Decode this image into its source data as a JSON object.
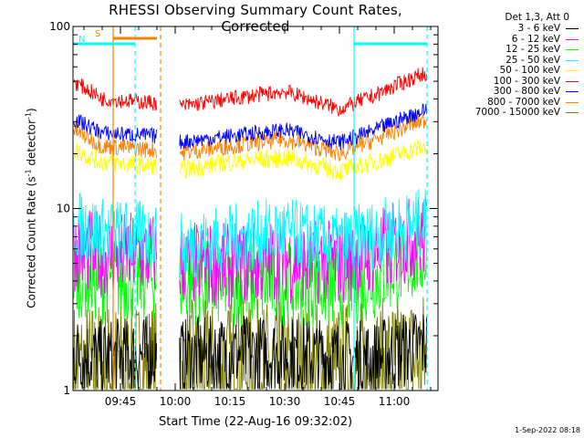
{
  "chart_data": {
    "type": "line",
    "title": "RHESSI Observing Summary Count Rates, Corrected",
    "xlabel": "Start Time (22-Aug-16 09:32:02)",
    "ylabel_main": "Corrected Count Rate (s",
    "ylabel_sup1": "-1",
    "ylabel_mid": " detector",
    "ylabel_sup2": "-1",
    "ylabel_end": ")",
    "yscale": "log",
    "ylim": [
      1,
      100
    ],
    "xlim": [
      "09:32",
      "11:12"
    ],
    "x_ticks": [
      "09:45",
      "10:00",
      "10:15",
      "10:30",
      "10:45",
      "11:00"
    ],
    "y_ticks": [
      "1",
      "10",
      "100"
    ],
    "gap": [
      "09:55",
      "10:00"
    ],
    "legend_header": "Det 1,3, Att 0",
    "timestamp": "1-Sep-2022 08:18",
    "flags": [
      {
        "label": "S",
        "color": "#ff8000",
        "start": "09:43",
        "end": "09:55"
      },
      {
        "label": "N",
        "color": "#00ffff",
        "start": "09:32",
        "end": "09:49"
      },
      {
        "label": "",
        "color": "#00ffff",
        "start": "10:49",
        "end": "11:09"
      }
    ],
    "vlines": [
      {
        "time": "09:43",
        "color": "#ff8000",
        "style": "solid"
      },
      {
        "time": "09:49",
        "color": "#00ffff",
        "style": "dashed"
      },
      {
        "time": "09:56",
        "color": "#ff8000",
        "style": "dashed"
      },
      {
        "time": "10:49",
        "color": "#00ffff",
        "style": "solid"
      },
      {
        "time": "11:09",
        "color": "#00ffff",
        "style": "dashed"
      }
    ],
    "series": [
      {
        "name": "3 - 6 keV",
        "color": "#000000",
        "x": [
          "09:32",
          "09:40",
          "09:55",
          "10:00",
          "10:15",
          "10:30",
          "10:45",
          "10:55",
          "11:09"
        ],
        "values": [
          1.6,
          1.5,
          1.6,
          1.5,
          1.6,
          1.6,
          1.5,
          1.5,
          1.8
        ]
      },
      {
        "name": "6 - 12 keV",
        "color": "#ff00ff",
        "x": [
          "09:32",
          "09:40",
          "09:55",
          "10:00",
          "10:15",
          "10:30",
          "10:45",
          "10:55",
          "11:09"
        ],
        "values": [
          6.0,
          5.6,
          5.6,
          5.0,
          4.8,
          5.2,
          5.0,
          5.8,
          7.2
        ]
      },
      {
        "name": "12 - 25 keV",
        "color": "#00ff00",
        "x": [
          "09:32",
          "09:40",
          "09:55",
          "10:00",
          "10:15",
          "10:30",
          "10:45",
          "10:55",
          "11:09"
        ],
        "values": [
          4.4,
          4.0,
          4.2,
          4.0,
          3.8,
          3.9,
          3.7,
          4.2,
          5.6
        ]
      },
      {
        "name": "25 - 50 keV",
        "color": "#00ffff",
        "x": [
          "09:32",
          "09:40",
          "09:55",
          "10:00",
          "10:15",
          "10:30",
          "10:45",
          "10:55",
          "11:09"
        ],
        "values": [
          8.2,
          7.4,
          7.0,
          6.0,
          6.8,
          7.4,
          6.4,
          7.2,
          8.4
        ]
      },
      {
        "name": "50 - 100 keV",
        "color": "#ffff00",
        "x": [
          "09:32",
          "09:40",
          "09:55",
          "10:00",
          "10:15",
          "10:30",
          "10:45",
          "10:55",
          "11:09"
        ],
        "values": [
          21,
          18,
          17,
          16,
          18,
          19,
          16,
          18,
          22
        ]
      },
      {
        "name": "100 - 300 keV",
        "color": "#ff0000",
        "x": [
          "09:32",
          "09:40",
          "09:55",
          "10:00",
          "10:15",
          "10:30",
          "10:45",
          "10:55",
          "11:09"
        ],
        "values": [
          50,
          40,
          38,
          36,
          40,
          44,
          35,
          42,
          56
        ]
      },
      {
        "name": "300 - 800 keV",
        "color": "#0000ff",
        "x": [
          "09:32",
          "09:40",
          "09:55",
          "10:00",
          "10:15",
          "10:30",
          "10:45",
          "10:55",
          "11:09"
        ],
        "values": [
          31,
          26,
          25,
          23,
          25,
          27,
          23,
          27,
          35
        ]
      },
      {
        "name": "800 - 7000 keV",
        "color": "#ff8000",
        "x": [
          "09:32",
          "09:40",
          "09:55",
          "10:00",
          "10:15",
          "10:30",
          "10:45",
          "10:55",
          "11:09"
        ],
        "values": [
          27,
          22,
          21,
          20,
          22,
          24,
          20,
          24,
          31
        ]
      },
      {
        "name": "7000 - 15000 keV",
        "color": "#808000",
        "x": [
          "09:32",
          "09:40",
          "09:55",
          "10:00",
          "10:15",
          "10:30",
          "10:45",
          "10:55",
          "11:09"
        ],
        "values": [
          1.3,
          1.3,
          1.3,
          1.3,
          1.3,
          1.3,
          1.3,
          1.3,
          1.5
        ]
      }
    ]
  }
}
